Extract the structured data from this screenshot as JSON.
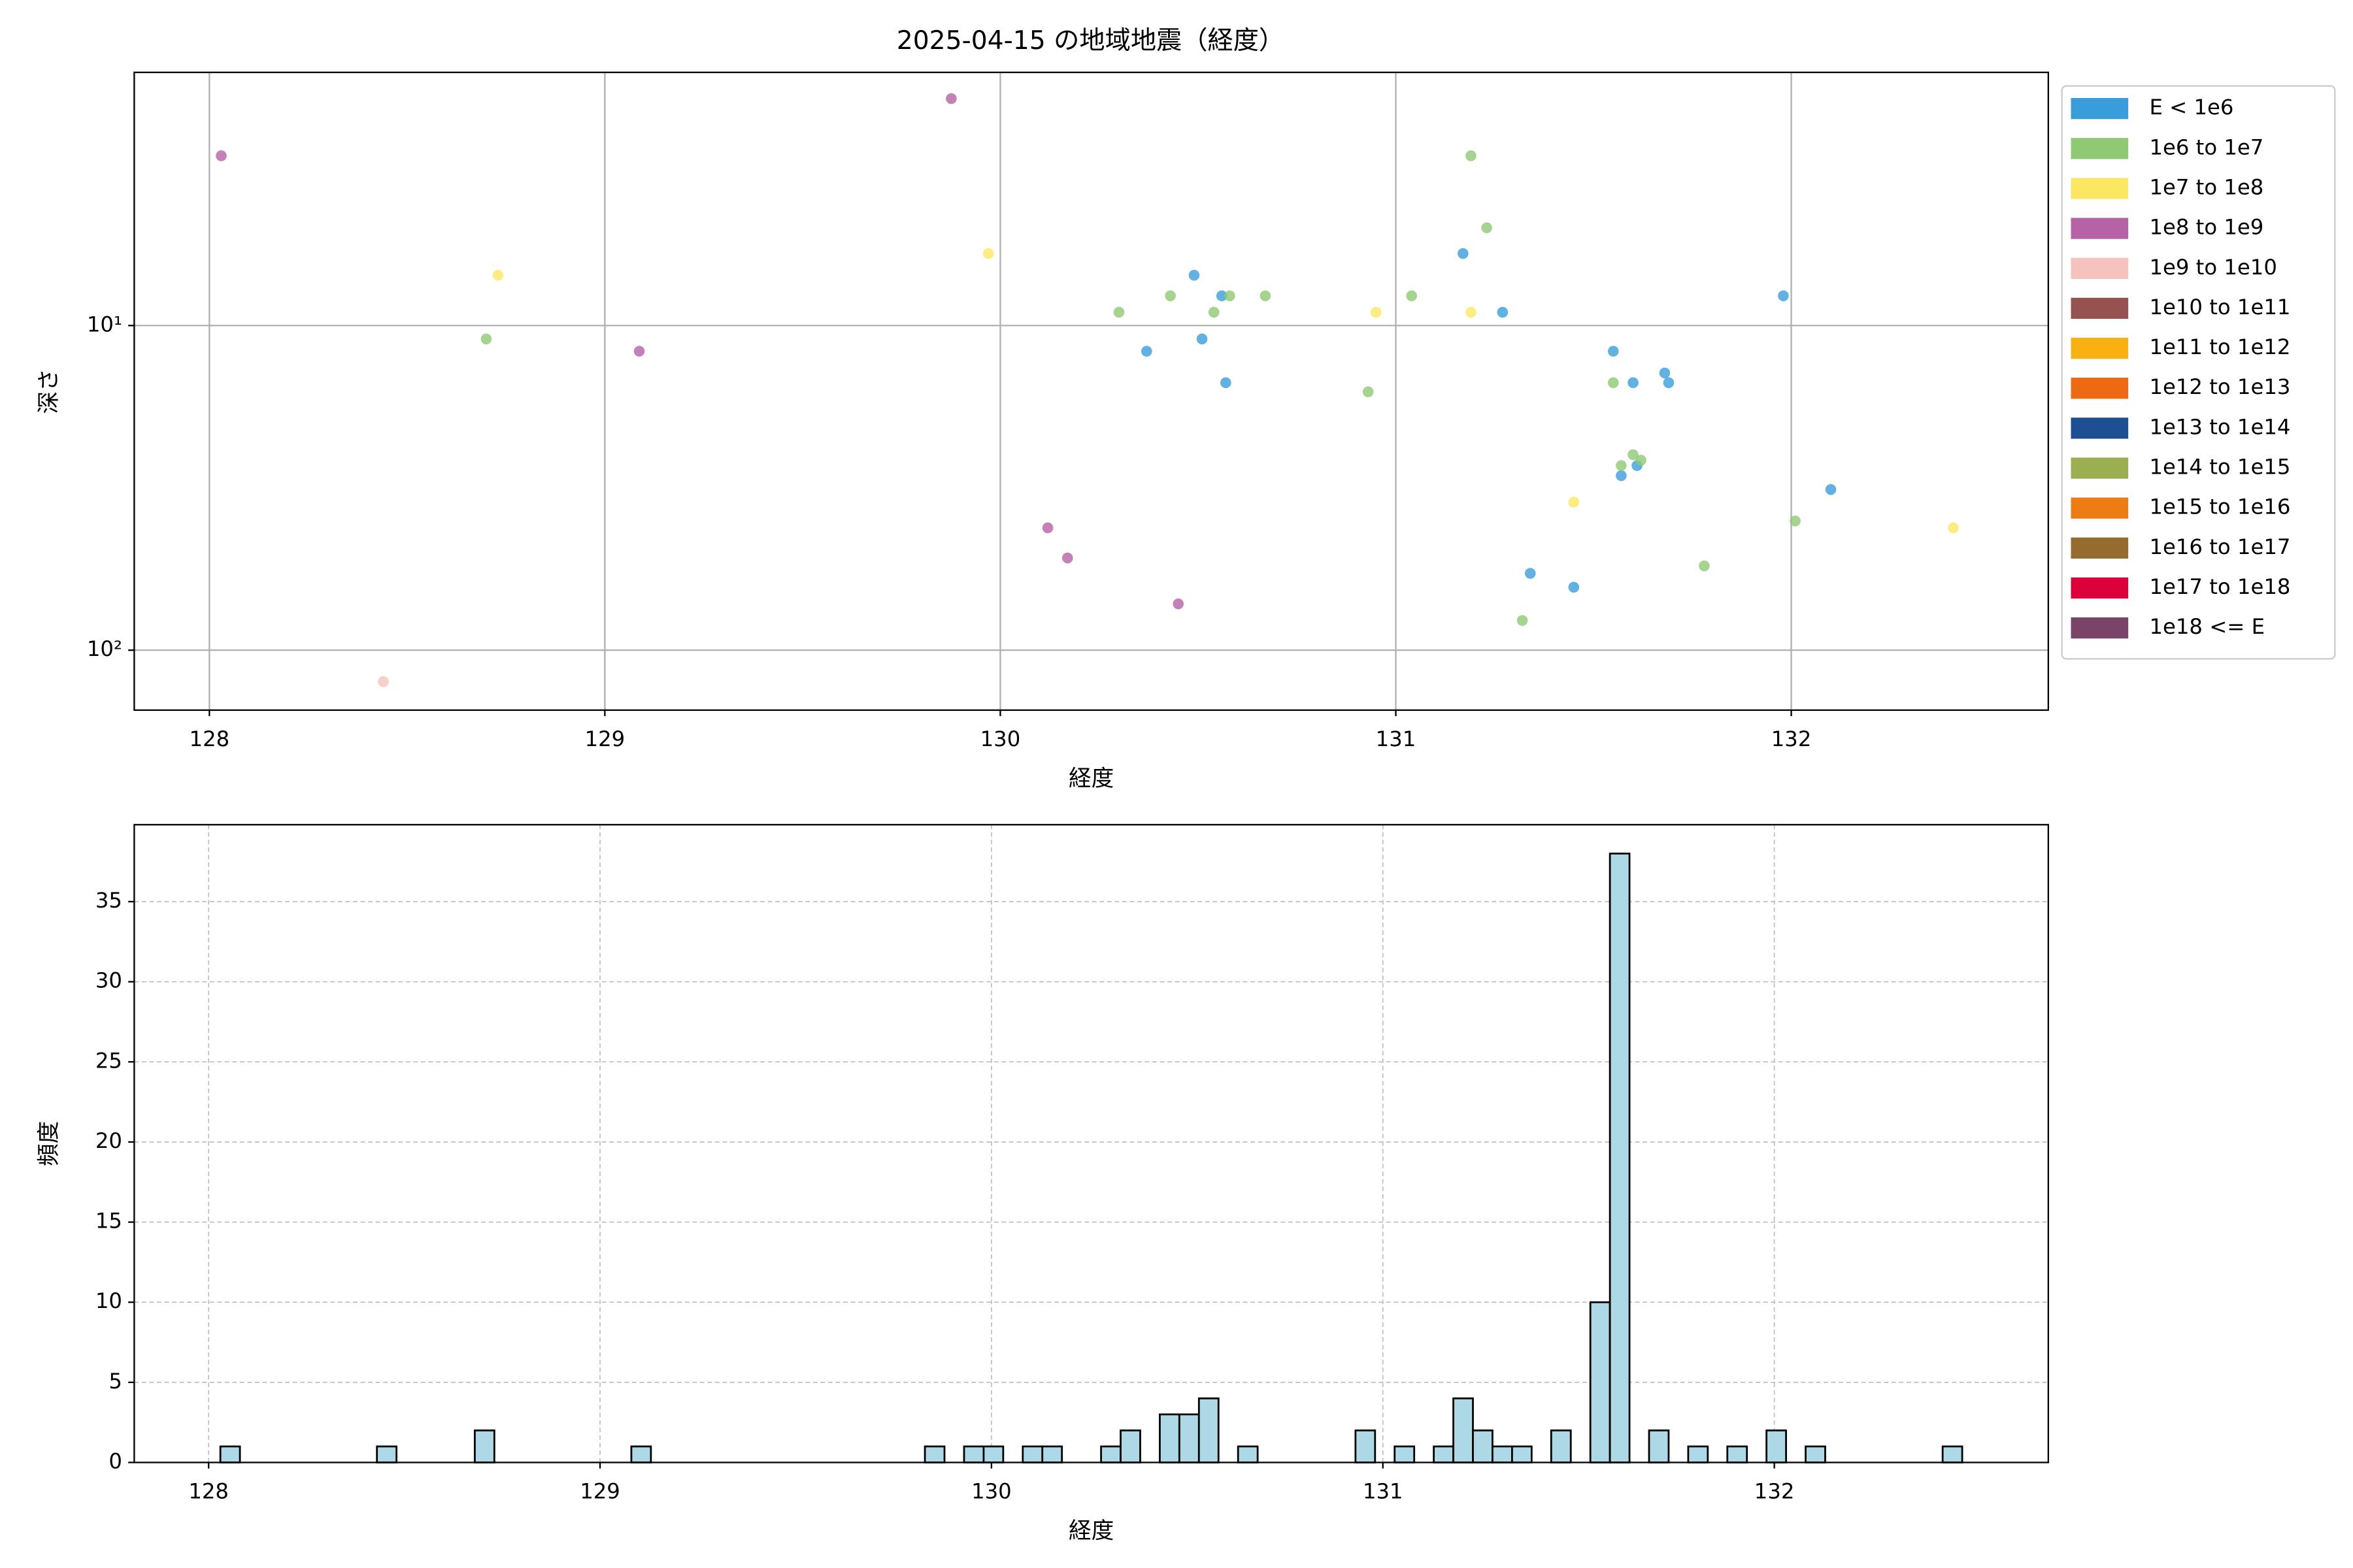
{
  "chart_data": [
    {
      "type": "scatter",
      "title": "2025-04-15 の地域地震（経度）",
      "x_label": "経度",
      "y_label": "深さ",
      "xlim": [
        127.81,
        132.65
      ],
      "ylim": [
        153,
        1.66
      ],
      "log_y": true,
      "xticks": [
        128,
        129,
        130,
        131,
        132
      ],
      "yticks": [
        {
          "value": 10,
          "label": "10¹"
        },
        {
          "value": 100,
          "label": "10²"
        }
      ],
      "grid": true,
      "legend": "outside-right",
      "series": [
        {
          "name": "E < 1e6",
          "color": "#3a9ddb",
          "x": [
            130.37,
            130.49,
            130.51,
            130.56,
            130.57,
            131.17,
            131.27,
            131.34,
            131.45,
            131.55,
            131.57,
            131.6,
            131.61,
            131.68,
            131.69,
            131.98,
            132.1
          ],
          "y": [
            12,
            7.0,
            11,
            8.1,
            15,
            6.0,
            9.1,
            58,
            64,
            12,
            29,
            15,
            27,
            14,
            15,
            8.1,
            32
          ]
        },
        {
          "name": "1e6 to 1e7",
          "color": "#8fc974",
          "x": [
            128.7,
            130.3,
            130.43,
            130.54,
            130.58,
            130.67,
            130.93,
            131.04,
            131.19,
            131.23,
            131.32,
            131.55,
            131.57,
            131.6,
            131.62,
            131.78,
            132.01
          ],
          "y": [
            11,
            9.1,
            8.1,
            9.1,
            8.1,
            8.1,
            16,
            8.1,
            3.0,
            5.0,
            81,
            15,
            27,
            25,
            26,
            55,
            40
          ]
        },
        {
          "name": "1e7 to 1e8",
          "color": "#fbe761",
          "x": [
            128.73,
            129.97,
            130.95,
            131.19,
            131.45,
            132.41
          ],
          "y": [
            7.0,
            6.0,
            9.1,
            9.1,
            35,
            42
          ]
        },
        {
          "name": "1e8 to 1e9",
          "color": "#b562a6",
          "x": [
            128.03,
            129.876,
            129.087,
            130.12,
            130.17,
            130.45
          ],
          "y": [
            3.0,
            2.0,
            12,
            42,
            52,
            72
          ]
        },
        {
          "name": "1e9 to 1e10",
          "color": "#f5c2bd",
          "x": [
            128.44
          ],
          "y": [
            125
          ]
        },
        {
          "name": "1e10 to 1e11",
          "color": "#955251",
          "x": [],
          "y": []
        },
        {
          "name": "1e11 to 1e12",
          "color": "#f8b110",
          "x": [],
          "y": []
        },
        {
          "name": "1e12 to 1e13",
          "color": "#ee6a12",
          "x": [],
          "y": []
        },
        {
          "name": "1e13 to 1e14",
          "color": "#1e4e93",
          "x": [],
          "y": []
        },
        {
          "name": "1e14 to 1e15",
          "color": "#9caf50",
          "x": [],
          "y": []
        },
        {
          "name": "1e15 to 1e16",
          "color": "#ee7c14",
          "x": [],
          "y": []
        },
        {
          "name": "1e16 to 1e17",
          "color": "#956b2e",
          "x": [],
          "y": []
        },
        {
          "name": "1e17 to 1e18",
          "color": "#dc003b",
          "x": [],
          "y": []
        },
        {
          "name": "1e18 <= E",
          "color": "#7a4468",
          "x": [],
          "y": []
        }
      ]
    },
    {
      "type": "histogram",
      "x_label": "経度",
      "y_label": "頻度",
      "xlim": [
        127.81,
        132.7
      ],
      "ylim": [
        0,
        39.8
      ],
      "xticks": [
        128,
        129,
        130,
        131,
        132
      ],
      "yticks": [
        0,
        5,
        10,
        15,
        20,
        25,
        30,
        35
      ],
      "grid": true,
      "color": "#add8e6",
      "edge_color": "#000000",
      "bins": [
        128.03,
        128.08,
        128.13,
        128.18,
        128.23,
        128.28,
        128.33,
        128.38,
        128.43,
        128.48,
        128.53,
        128.58,
        128.63,
        128.68,
        128.73,
        128.78,
        128.83,
        128.88,
        128.93,
        128.98,
        129.03,
        129.08,
        129.13,
        129.18,
        129.23,
        129.28,
        129.33,
        129.38,
        129.43,
        129.48,
        129.53,
        129.58,
        129.63,
        129.68,
        129.73,
        129.78,
        129.83,
        129.88,
        129.93,
        129.98,
        130.03,
        130.08,
        130.13,
        130.18,
        130.23,
        130.28,
        130.33,
        130.38,
        130.43,
        130.48,
        130.53,
        130.58,
        130.63,
        130.68,
        130.73,
        130.78,
        130.83,
        130.88,
        130.93,
        130.98,
        131.03,
        131.08,
        131.13,
        131.18,
        131.23,
        131.28,
        131.33,
        131.38,
        131.43,
        131.48,
        131.53,
        131.58,
        131.63,
        131.68,
        131.73,
        131.78,
        131.83,
        131.88,
        131.93,
        131.98,
        132.03,
        132.08,
        132.13,
        132.18,
        132.23,
        132.28,
        132.33,
        132.38,
        132.43,
        132.48
      ],
      "values": [
        1,
        0,
        0,
        0,
        0,
        0,
        0,
        0,
        1,
        0,
        0,
        0,
        0,
        2,
        0,
        0,
        0,
        0,
        0,
        0,
        0,
        1,
        0,
        0,
        0,
        0,
        0,
        0,
        0,
        0,
        0,
        0,
        0,
        0,
        0,
        0,
        1,
        0,
        1,
        1,
        0,
        1,
        1,
        0,
        0,
        1,
        2,
        0,
        3,
        3,
        4,
        0,
        1,
        0,
        0,
        0,
        0,
        0,
        2,
        0,
        1,
        0,
        1,
        4,
        2,
        1,
        1,
        0,
        2,
        0,
        10,
        38,
        0,
        2,
        0,
        1,
        0,
        1,
        0,
        2,
        0,
        1,
        0,
        0,
        0,
        0,
        0,
        0,
        1
      ]
    }
  ]
}
